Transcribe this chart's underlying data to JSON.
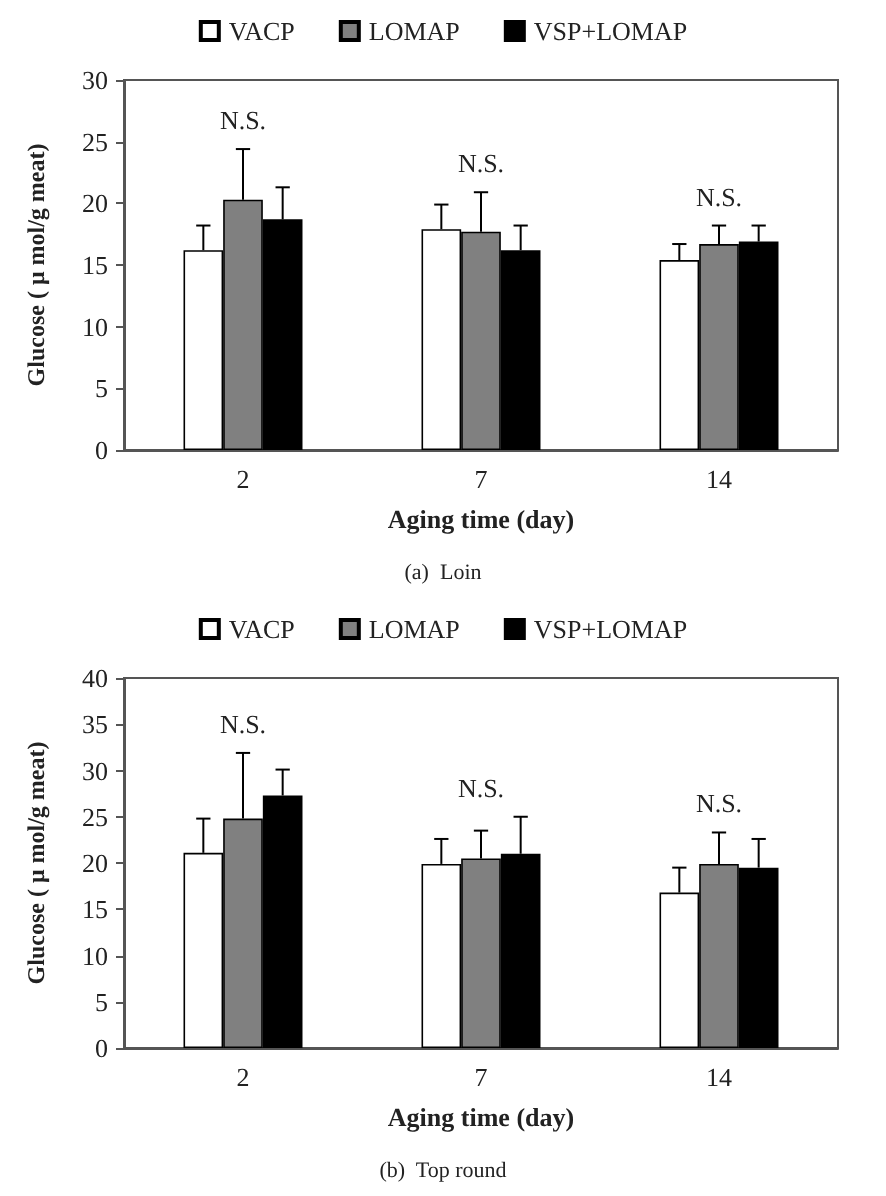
{
  "chart_data": [
    {
      "type": "bar",
      "subtitle": "(a)  Loin",
      "xlabel": "Aging time (day)",
      "ylabel": "Glucose ( μ mol/g meat)",
      "categories": [
        "2",
        "7",
        "14"
      ],
      "series": [
        {
          "name": "VACP",
          "color": "#ffffff",
          "values": [
            16.2,
            17.9,
            15.4
          ],
          "errors": [
            2.0,
            2.0,
            1.3
          ]
        },
        {
          "name": "LOMAP",
          "color": "#808080",
          "values": [
            20.3,
            17.7,
            16.7
          ],
          "errors": [
            4.1,
            3.2,
            1.5
          ]
        },
        {
          "name": "VSP+LOMAP",
          "color": "#000000",
          "values": [
            18.7,
            16.2,
            16.9
          ],
          "errors": [
            2.6,
            2.0,
            1.3
          ]
        }
      ],
      "ylim": [
        0,
        30
      ],
      "yticks": [
        0,
        5,
        10,
        15,
        20,
        25,
        30
      ],
      "grid": false,
      "legend": "top",
      "annotations": [
        "N.S.",
        "N.S.",
        "N.S."
      ]
    },
    {
      "type": "bar",
      "subtitle": "(b)  Top round",
      "xlabel": "Aging time (day)",
      "ylabel": "Glucose ( μ mol/g meat)",
      "categories": [
        "2",
        "7",
        "14"
      ],
      "series": [
        {
          "name": "VACP",
          "color": "#ffffff",
          "values": [
            21.1,
            19.9,
            16.8
          ],
          "errors": [
            3.7,
            2.7,
            2.7
          ]
        },
        {
          "name": "LOMAP",
          "color": "#808080",
          "values": [
            24.8,
            20.5,
            19.9
          ],
          "errors": [
            7.1,
            3.0,
            3.4
          ]
        },
        {
          "name": "VSP+LOMAP",
          "color": "#000000",
          "values": [
            27.3,
            21.0,
            19.5
          ],
          "errors": [
            2.8,
            4.0,
            3.1
          ]
        }
      ],
      "ylim": [
        0,
        40
      ],
      "yticks": [
        0,
        5,
        10,
        15,
        20,
        25,
        30,
        35,
        40
      ],
      "grid": false,
      "legend": "top",
      "annotations": [
        "N.S.",
        "N.S.",
        "N.S."
      ]
    }
  ]
}
